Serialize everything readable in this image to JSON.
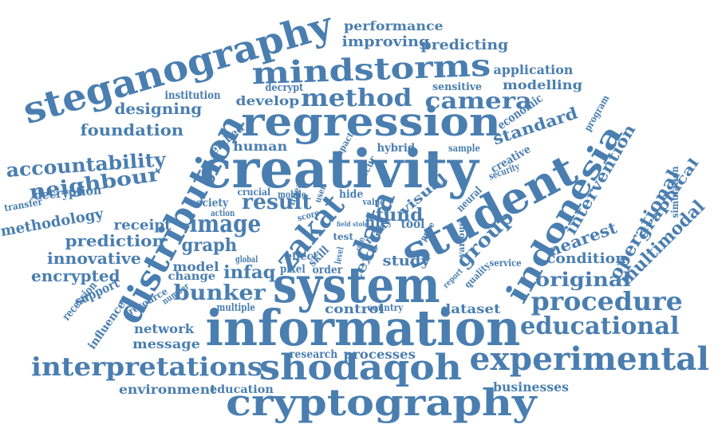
{
  "word_color": "#4a7eb0",
  "words": [
    {
      "text": "information"
    },
    {
      "text": "creativity"
    },
    {
      "text": "system"
    },
    {
      "text": "regression"
    },
    {
      "text": "cryptography"
    },
    {
      "text": "steganography"
    },
    {
      "text": "student"
    },
    {
      "text": "distribution"
    },
    {
      "text": "mindstorms"
    },
    {
      "text": "shodaqoh"
    },
    {
      "text": "experimental"
    },
    {
      "text": "interpretations"
    },
    {
      "text": "indonesia"
    },
    {
      "text": "zakat"
    },
    {
      "text": "data"
    },
    {
      "text": "procedure"
    },
    {
      "text": "educational"
    },
    {
      "text": "method"
    },
    {
      "text": "camera"
    },
    {
      "text": "image"
    },
    {
      "text": "result"
    },
    {
      "text": "accountability"
    },
    {
      "text": "neighbour"
    },
    {
      "text": "bunker"
    },
    {
      "text": "original"
    },
    {
      "text": "group"
    },
    {
      "text": "fund"
    },
    {
      "text": "graph"
    },
    {
      "text": "infaq"
    },
    {
      "text": "foundation"
    },
    {
      "text": "designing"
    },
    {
      "text": "standard"
    },
    {
      "text": "intervention"
    },
    {
      "text": "operational"
    },
    {
      "text": "multimodal"
    },
    {
      "text": "graphical"
    },
    {
      "text": "nearest"
    },
    {
      "text": "condition"
    },
    {
      "text": "prediction"
    },
    {
      "text": "innovative"
    },
    {
      "text": "encrypted"
    },
    {
      "text": "receipt"
    },
    {
      "text": "methodology"
    },
    {
      "text": "improving"
    },
    {
      "text": "predicting"
    },
    {
      "text": "performance"
    },
    {
      "text": "application"
    },
    {
      "text": "modelling"
    },
    {
      "text": "develop"
    },
    {
      "text": "decryption"
    },
    {
      "text": "study"
    },
    {
      "text": "text"
    },
    {
      "text": "visual"
    },
    {
      "text": "control"
    },
    {
      "text": "dataset"
    },
    {
      "text": "network"
    },
    {
      "text": "message"
    },
    {
      "text": "environment"
    },
    {
      "text": "education"
    },
    {
      "text": "businesses"
    },
    {
      "text": "processes"
    },
    {
      "text": "research"
    },
    {
      "text": "human"
    },
    {
      "text": "society"
    },
    {
      "text": "model"
    },
    {
      "text": "change"
    },
    {
      "text": "support"
    },
    {
      "text": "recession"
    },
    {
      "text": "influence"
    },
    {
      "text": "resource"
    },
    {
      "text": "number"
    },
    {
      "text": "multiple"
    },
    {
      "text": "institution"
    },
    {
      "text": "decrypt"
    },
    {
      "text": "sensitive"
    },
    {
      "text": "economic"
    },
    {
      "text": "program"
    },
    {
      "text": "creative"
    },
    {
      "text": "security"
    },
    {
      "text": "simulation"
    },
    {
      "text": "embed"
    },
    {
      "text": "transfer"
    },
    {
      "text": "hybrid"
    },
    {
      "text": "sample"
    },
    {
      "text": "impact"
    },
    {
      "text": "occur"
    },
    {
      "text": "linear"
    },
    {
      "text": "crucial"
    },
    {
      "text": "mobile"
    },
    {
      "text": "action"
    },
    {
      "text": "user"
    },
    {
      "text": "hide"
    },
    {
      "text": "score"
    },
    {
      "text": "value"
    },
    {
      "text": "many"
    },
    {
      "text": "field"
    },
    {
      "text": "stole"
    },
    {
      "text": "file"
    },
    {
      "text": "tool"
    },
    {
      "text": "test"
    },
    {
      "text": "price"
    },
    {
      "text": "neural"
    },
    {
      "text": "various"
    },
    {
      "text": "quality"
    },
    {
      "text": "service"
    },
    {
      "text": "report"
    },
    {
      "text": "skill"
    },
    {
      "text": "level"
    },
    {
      "text": "effect"
    },
    {
      "text": "global"
    },
    {
      "text": "pixel"
    },
    {
      "text": "order"
    },
    {
      "text": "country"
    },
    {
      "text": "theft"
    }
  ]
}
